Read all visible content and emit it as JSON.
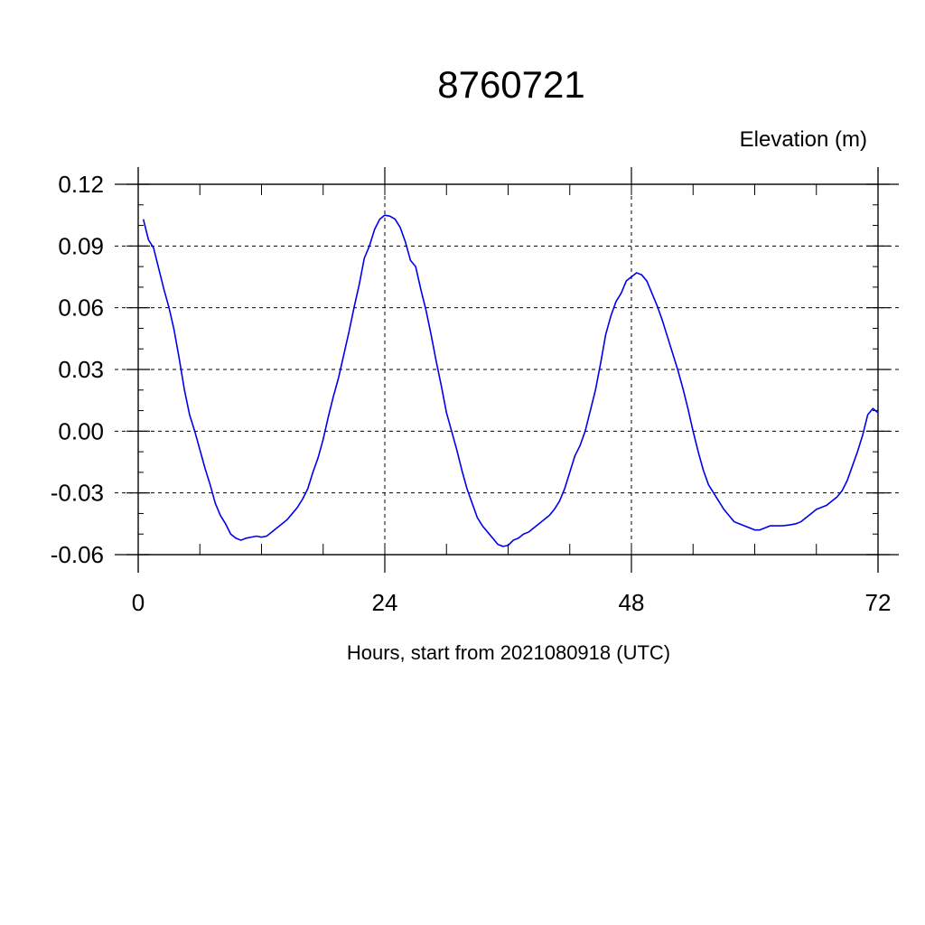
{
  "chart_data": {
    "type": "line",
    "title": "8760721",
    "ylabel": "Elevation (m)",
    "xlabel": "Hours, start from 2021080918 (UTC)",
    "xlim": [
      0,
      72
    ],
    "ylim": [
      -0.06,
      0.12
    ],
    "x_ticks": [
      0,
      24,
      48,
      72
    ],
    "x_tick_labels": [
      "0",
      "24",
      "48",
      "72"
    ],
    "y_ticks": [
      -0.06,
      -0.03,
      0.0,
      0.03,
      0.06,
      0.09,
      0.12
    ],
    "y_tick_labels": [
      "-0.06",
      "-0.03",
      "0.00",
      "0.03",
      "0.06",
      "0.09",
      "0.12"
    ],
    "grid": true,
    "line_color": "#0000ee",
    "series": [
      {
        "points": [
          [
            0.5,
            0.103
          ],
          [
            1.0,
            0.093
          ],
          [
            1.5,
            0.089
          ],
          [
            2.0,
            0.079
          ],
          [
            2.5,
            0.069
          ],
          [
            3.0,
            0.06
          ],
          [
            3.5,
            0.049
          ],
          [
            4.0,
            0.035
          ],
          [
            4.5,
            0.02
          ],
          [
            5.0,
            0.008
          ],
          [
            5.5,
            0.0
          ],
          [
            6.0,
            -0.009
          ],
          [
            6.5,
            -0.018
          ],
          [
            7.0,
            -0.026
          ],
          [
            7.5,
            -0.035
          ],
          [
            8.0,
            -0.041
          ],
          [
            8.5,
            -0.045
          ],
          [
            9.0,
            -0.05
          ],
          [
            9.5,
            -0.052
          ],
          [
            10.0,
            -0.053
          ],
          [
            10.5,
            -0.052
          ],
          [
            11.0,
            -0.0515
          ],
          [
            11.5,
            -0.051
          ],
          [
            12.0,
            -0.0515
          ],
          [
            12.5,
            -0.051
          ],
          [
            13.0,
            -0.049
          ],
          [
            13.5,
            -0.047
          ],
          [
            14.0,
            -0.045
          ],
          [
            14.5,
            -0.043
          ],
          [
            15.0,
            -0.04
          ],
          [
            15.5,
            -0.037
          ],
          [
            16.0,
            -0.033
          ],
          [
            16.5,
            -0.028
          ],
          [
            17.0,
            -0.02
          ],
          [
            17.5,
            -0.013
          ],
          [
            18.0,
            -0.004
          ],
          [
            18.5,
            0.007
          ],
          [
            19.0,
            0.017
          ],
          [
            19.5,
            0.026
          ],
          [
            20.0,
            0.037
          ],
          [
            20.5,
            0.048
          ],
          [
            21.0,
            0.06
          ],
          [
            21.5,
            0.071
          ],
          [
            22.0,
            0.084
          ],
          [
            22.5,
            0.09
          ],
          [
            23.0,
            0.098
          ],
          [
            23.5,
            0.103
          ],
          [
            24.0,
            0.105
          ],
          [
            24.5,
            0.1045
          ],
          [
            25.0,
            0.103
          ],
          [
            25.5,
            0.099
          ],
          [
            26.0,
            0.092
          ],
          [
            26.5,
            0.083
          ],
          [
            27.0,
            0.08
          ],
          [
            27.5,
            0.069
          ],
          [
            28.0,
            0.059
          ],
          [
            28.5,
            0.047
          ],
          [
            29.0,
            0.034
          ],
          [
            29.5,
            0.022
          ],
          [
            30.0,
            0.009
          ],
          [
            30.5,
            0.0
          ],
          [
            31.0,
            -0.009
          ],
          [
            31.5,
            -0.019
          ],
          [
            32.0,
            -0.028
          ],
          [
            32.5,
            -0.035
          ],
          [
            33.0,
            -0.042
          ],
          [
            33.5,
            -0.046
          ],
          [
            34.0,
            -0.049
          ],
          [
            34.5,
            -0.052
          ],
          [
            35.0,
            -0.055
          ],
          [
            35.5,
            -0.056
          ],
          [
            36.0,
            -0.0555
          ],
          [
            36.5,
            -0.053
          ],
          [
            37.0,
            -0.052
          ],
          [
            37.5,
            -0.05
          ],
          [
            38.0,
            -0.049
          ],
          [
            38.5,
            -0.047
          ],
          [
            39.0,
            -0.045
          ],
          [
            39.5,
            -0.043
          ],
          [
            40.0,
            -0.041
          ],
          [
            40.5,
            -0.038
          ],
          [
            41.0,
            -0.034
          ],
          [
            41.5,
            -0.028
          ],
          [
            42.0,
            -0.02
          ],
          [
            42.5,
            -0.012
          ],
          [
            43.0,
            -0.007
          ],
          [
            43.5,
            0.0
          ],
          [
            44.0,
            0.01
          ],
          [
            44.5,
            0.02
          ],
          [
            45.0,
            0.033
          ],
          [
            45.5,
            0.047
          ],
          [
            46.0,
            0.056
          ],
          [
            46.5,
            0.063
          ],
          [
            47.0,
            0.067
          ],
          [
            47.5,
            0.073
          ],
          [
            48.0,
            0.075
          ],
          [
            48.5,
            0.077
          ],
          [
            49.0,
            0.076
          ],
          [
            49.5,
            0.073
          ],
          [
            50.0,
            0.067
          ],
          [
            50.5,
            0.061
          ],
          [
            51.0,
            0.054
          ],
          [
            51.5,
            0.046
          ],
          [
            52.0,
            0.038
          ],
          [
            52.5,
            0.03
          ],
          [
            53.0,
            0.021
          ],
          [
            53.5,
            0.011
          ],
          [
            54.0,
            0.0
          ],
          [
            54.5,
            -0.01
          ],
          [
            55.0,
            -0.019
          ],
          [
            55.5,
            -0.026
          ],
          [
            56.0,
            -0.03
          ],
          [
            56.5,
            -0.034
          ],
          [
            57.0,
            -0.038
          ],
          [
            57.5,
            -0.041
          ],
          [
            58.0,
            -0.044
          ],
          [
            58.5,
            -0.045
          ],
          [
            59.0,
            -0.046
          ],
          [
            59.5,
            -0.047
          ],
          [
            60.0,
            -0.048
          ],
          [
            60.5,
            -0.048
          ],
          [
            61.0,
            -0.047
          ],
          [
            61.5,
            -0.046
          ],
          [
            62.0,
            -0.046
          ],
          [
            62.5,
            -0.046
          ],
          [
            63.0,
            -0.0458
          ],
          [
            63.5,
            -0.0455
          ],
          [
            64.0,
            -0.045
          ],
          [
            64.5,
            -0.044
          ],
          [
            65.0,
            -0.042
          ],
          [
            65.5,
            -0.04
          ],
          [
            66.0,
            -0.038
          ],
          [
            66.5,
            -0.037
          ],
          [
            67.0,
            -0.036
          ],
          [
            67.5,
            -0.034
          ],
          [
            68.0,
            -0.032
          ],
          [
            68.5,
            -0.029
          ],
          [
            69.0,
            -0.024
          ],
          [
            69.5,
            -0.017
          ],
          [
            70.0,
            -0.01
          ],
          [
            70.5,
            -0.002
          ],
          [
            71.0,
            0.008
          ],
          [
            71.5,
            0.011
          ],
          [
            72.0,
            0.009
          ]
        ]
      }
    ]
  }
}
